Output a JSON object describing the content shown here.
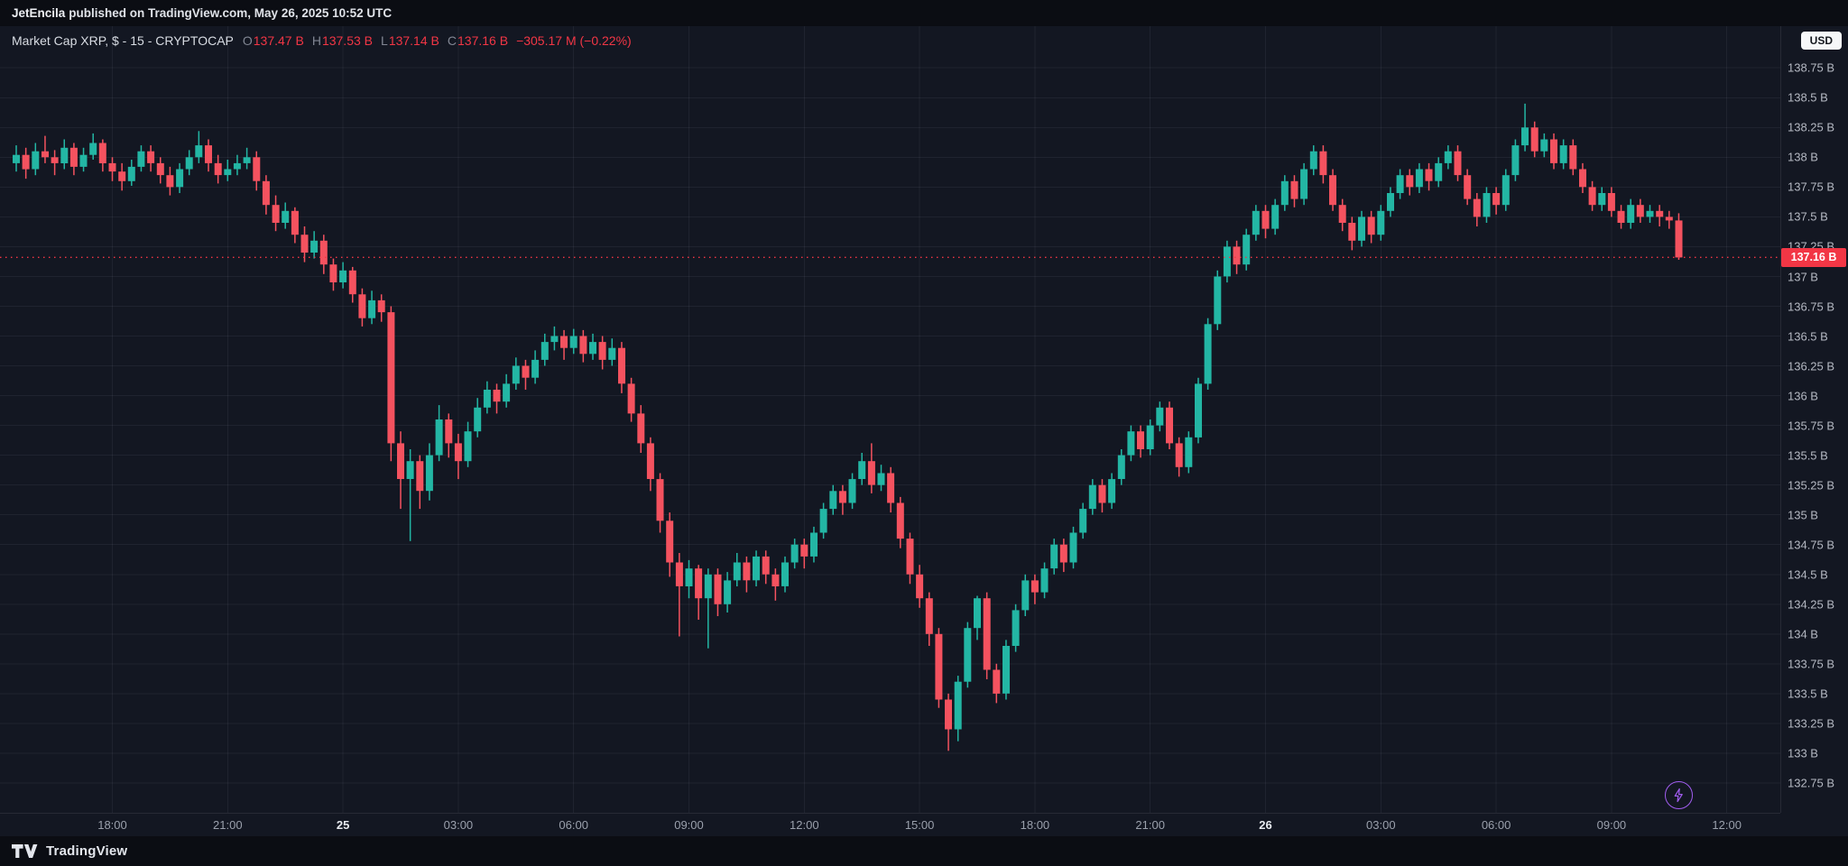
{
  "header": {
    "user": "JetEncila",
    "rest": "published on TradingView.com, May 26, 2025 10:52 UTC"
  },
  "legend": {
    "title": "Market Cap XRP, $ - 15 - CRYPTOCAP",
    "o_label": "O",
    "o_value": "137.47 B",
    "h_label": "H",
    "h_value": "137.53 B",
    "l_label": "L",
    "l_value": "137.14 B",
    "c_label": "C",
    "c_value": "137.16 B",
    "change": "−305.17 M (−0.22%)"
  },
  "currency_button": "USD",
  "price_tag": "137.16 B",
  "footer": {
    "brand": "TradingView"
  },
  "colors": {
    "up": "#23b6a4",
    "down": "#f4525f",
    "accent_red": "#f23645",
    "bg": "#131722",
    "frame": "#0b0d13",
    "grid": "rgba(240,243,250,0.06)",
    "axis_text": "#b4b8c2",
    "purple": "#a15df0"
  },
  "chart_data": {
    "type": "candlestick",
    "title": "Market Cap XRP",
    "exchange": "CRYPTOCAP",
    "interval": "15",
    "currency": "USD",
    "unit_suffix": " B",
    "grid": true,
    "last_price": 137.16,
    "price_line": 137.16,
    "ylim": [
      132.5,
      139.1
    ],
    "y_ticks": [
      {
        "value": 138.75,
        "label": "138.75 B"
      },
      {
        "value": 138.5,
        "label": "138.5 B"
      },
      {
        "value": 138.25,
        "label": "138.25 B"
      },
      {
        "value": 138,
        "label": "138 B"
      },
      {
        "value": 137.75,
        "label": "137.75 B"
      },
      {
        "value": 137.5,
        "label": "137.5 B"
      },
      {
        "value": 137.25,
        "label": "137.25 B"
      },
      {
        "value": 137,
        "label": "137 B"
      },
      {
        "value": 136.75,
        "label": "136.75 B"
      },
      {
        "value": 136.5,
        "label": "136.5 B"
      },
      {
        "value": 136.25,
        "label": "136.25 B"
      },
      {
        "value": 136,
        "label": "136 B"
      },
      {
        "value": 135.75,
        "label": "135.75 B"
      },
      {
        "value": 135.5,
        "label": "135.5 B"
      },
      {
        "value": 135.25,
        "label": "135.25 B"
      },
      {
        "value": 135,
        "label": "135 B"
      },
      {
        "value": 134.75,
        "label": "134.75 B"
      },
      {
        "value": 134.5,
        "label": "134.5 B"
      },
      {
        "value": 134.25,
        "label": "134.25 B"
      },
      {
        "value": 134,
        "label": "134 B"
      },
      {
        "value": 133.75,
        "label": "133.75 B"
      },
      {
        "value": 133.5,
        "label": "133.5 B"
      },
      {
        "value": 133.25,
        "label": "133.25 B"
      },
      {
        "value": 133,
        "label": "133 B"
      },
      {
        "value": 132.75,
        "label": "132.75 B"
      }
    ],
    "x_ticks": [
      {
        "index": 10,
        "label": "18:00"
      },
      {
        "index": 22,
        "label": "21:00"
      },
      {
        "index": 34,
        "label": "25",
        "major": true
      },
      {
        "index": 46,
        "label": "03:00"
      },
      {
        "index": 58,
        "label": "06:00"
      },
      {
        "index": 70,
        "label": "09:00"
      },
      {
        "index": 82,
        "label": "12:00"
      },
      {
        "index": 94,
        "label": "15:00"
      },
      {
        "index": 106,
        "label": "18:00"
      },
      {
        "index": 118,
        "label": "21:00"
      },
      {
        "index": 130,
        "label": "26",
        "major": true
      },
      {
        "index": 142,
        "label": "03:00"
      },
      {
        "index": 154,
        "label": "06:00"
      },
      {
        "index": 166,
        "label": "09:00"
      },
      {
        "index": 178,
        "label": "12:00"
      }
    ],
    "candles": [
      [
        137.95,
        138.1,
        137.88,
        138.02
      ],
      [
        138.02,
        138.08,
        137.82,
        137.9
      ],
      [
        137.9,
        138.12,
        137.85,
        138.05
      ],
      [
        138.05,
        138.18,
        137.95,
        138.0
      ],
      [
        138.0,
        138.06,
        137.85,
        137.95
      ],
      [
        137.95,
        138.15,
        137.9,
        138.08
      ],
      [
        138.08,
        138.12,
        137.85,
        137.92
      ],
      [
        137.92,
        138.08,
        137.88,
        138.02
      ],
      [
        138.02,
        138.2,
        137.98,
        138.12
      ],
      [
        138.12,
        138.15,
        137.88,
        137.95
      ],
      [
        137.95,
        138.0,
        137.8,
        137.88
      ],
      [
        137.88,
        137.95,
        137.72,
        137.8
      ],
      [
        137.8,
        137.98,
        137.76,
        137.92
      ],
      [
        137.92,
        138.1,
        137.88,
        138.05
      ],
      [
        138.05,
        138.1,
        137.88,
        137.95
      ],
      [
        137.95,
        138.0,
        137.78,
        137.85
      ],
      [
        137.85,
        137.92,
        137.68,
        137.75
      ],
      [
        137.75,
        137.95,
        137.7,
        137.9
      ],
      [
        137.9,
        138.06,
        137.85,
        138.0
      ],
      [
        138.0,
        138.22,
        137.95,
        138.1
      ],
      [
        138.1,
        138.15,
        137.88,
        137.95
      ],
      [
        137.95,
        138.02,
        137.78,
        137.85
      ],
      [
        137.85,
        137.98,
        137.8,
        137.9
      ],
      [
        137.9,
        138.02,
        137.85,
        137.95
      ],
      [
        137.95,
        138.08,
        137.9,
        138.0
      ],
      [
        138.0,
        138.05,
        137.72,
        137.8
      ],
      [
        137.8,
        137.85,
        137.52,
        137.6
      ],
      [
        137.6,
        137.68,
        137.38,
        137.45
      ],
      [
        137.45,
        137.62,
        137.4,
        137.55
      ],
      [
        137.55,
        137.58,
        137.28,
        137.35
      ],
      [
        137.35,
        137.42,
        137.12,
        137.2
      ],
      [
        137.2,
        137.38,
        137.15,
        137.3
      ],
      [
        137.3,
        137.35,
        137.02,
        137.1
      ],
      [
        137.1,
        137.15,
        136.88,
        136.95
      ],
      [
        136.95,
        137.12,
        136.9,
        137.05
      ],
      [
        137.05,
        137.08,
        136.78,
        136.85
      ],
      [
        136.85,
        136.9,
        136.58,
        136.65
      ],
      [
        136.65,
        136.88,
        136.6,
        136.8
      ],
      [
        136.8,
        136.85,
        136.62,
        136.7
      ],
      [
        136.7,
        136.75,
        135.45,
        135.6
      ],
      [
        135.6,
        135.7,
        135.05,
        135.3
      ],
      [
        135.3,
        135.55,
        134.78,
        135.45
      ],
      [
        135.45,
        135.5,
        135.05,
        135.2
      ],
      [
        135.2,
        135.6,
        135.12,
        135.5
      ],
      [
        135.5,
        135.92,
        135.45,
        135.8
      ],
      [
        135.8,
        135.85,
        135.48,
        135.6
      ],
      [
        135.6,
        135.68,
        135.3,
        135.45
      ],
      [
        135.45,
        135.78,
        135.4,
        135.7
      ],
      [
        135.7,
        135.98,
        135.65,
        135.9
      ],
      [
        135.9,
        136.12,
        135.85,
        136.05
      ],
      [
        136.05,
        136.1,
        135.85,
        135.95
      ],
      [
        135.95,
        136.18,
        135.9,
        136.1
      ],
      [
        136.1,
        136.32,
        136.05,
        136.25
      ],
      [
        136.25,
        136.3,
        136.05,
        136.15
      ],
      [
        136.15,
        136.38,
        136.1,
        136.3
      ],
      [
        136.3,
        136.52,
        136.25,
        136.45
      ],
      [
        136.45,
        136.58,
        136.38,
        136.5
      ],
      [
        136.5,
        136.55,
        136.3,
        136.4
      ],
      [
        136.4,
        136.56,
        136.35,
        136.5
      ],
      [
        136.5,
        136.55,
        136.28,
        136.35
      ],
      [
        136.35,
        136.52,
        136.3,
        136.45
      ],
      [
        136.45,
        136.5,
        136.22,
        136.3
      ],
      [
        136.3,
        136.48,
        136.25,
        136.4
      ],
      [
        136.4,
        136.45,
        136.02,
        136.1
      ],
      [
        136.1,
        136.15,
        135.78,
        135.85
      ],
      [
        135.85,
        135.92,
        135.52,
        135.6
      ],
      [
        135.6,
        135.65,
        135.2,
        135.3
      ],
      [
        135.3,
        135.35,
        134.85,
        134.95
      ],
      [
        134.95,
        135.02,
        134.48,
        134.6
      ],
      [
        134.6,
        134.68,
        133.98,
        134.4
      ],
      [
        134.4,
        134.62,
        134.3,
        134.55
      ],
      [
        134.55,
        134.58,
        134.12,
        134.3
      ],
      [
        134.3,
        134.55,
        133.88,
        134.5
      ],
      [
        134.5,
        134.55,
        134.15,
        134.25
      ],
      [
        134.25,
        134.52,
        134.18,
        134.45
      ],
      [
        134.45,
        134.68,
        134.4,
        134.6
      ],
      [
        134.6,
        134.65,
        134.35,
        134.45
      ],
      [
        134.45,
        134.7,
        134.4,
        134.65
      ],
      [
        134.65,
        134.7,
        134.42,
        134.5
      ],
      [
        134.5,
        134.55,
        134.28,
        134.4
      ],
      [
        134.4,
        134.65,
        134.35,
        134.6
      ],
      [
        134.6,
        134.8,
        134.55,
        134.75
      ],
      [
        134.75,
        134.8,
        134.55,
        134.65
      ],
      [
        134.65,
        134.9,
        134.6,
        134.85
      ],
      [
        134.85,
        135.1,
        134.8,
        135.05
      ],
      [
        135.05,
        135.25,
        135.0,
        135.2
      ],
      [
        135.2,
        135.25,
        135.0,
        135.1
      ],
      [
        135.1,
        135.35,
        135.05,
        135.3
      ],
      [
        135.3,
        135.52,
        135.25,
        135.45
      ],
      [
        135.45,
        135.6,
        135.18,
        135.25
      ],
      [
        135.25,
        135.42,
        135.2,
        135.35
      ],
      [
        135.35,
        135.4,
        135.02,
        135.1
      ],
      [
        135.1,
        135.15,
        134.72,
        134.8
      ],
      [
        134.8,
        134.85,
        134.42,
        134.5
      ],
      [
        134.5,
        134.58,
        134.22,
        134.3
      ],
      [
        134.3,
        134.35,
        133.9,
        134.0
      ],
      [
        134.0,
        134.05,
        133.38,
        133.45
      ],
      [
        133.45,
        133.5,
        133.02,
        133.2
      ],
      [
        133.2,
        133.65,
        133.1,
        133.6
      ],
      [
        133.6,
        134.1,
        133.55,
        134.05
      ],
      [
        134.05,
        134.32,
        133.95,
        134.3
      ],
      [
        134.3,
        134.35,
        133.62,
        133.7
      ],
      [
        133.7,
        133.75,
        133.42,
        133.5
      ],
      [
        133.5,
        133.95,
        133.45,
        133.9
      ],
      [
        133.9,
        134.25,
        133.85,
        134.2
      ],
      [
        134.2,
        134.5,
        134.15,
        134.45
      ],
      [
        134.45,
        134.5,
        134.25,
        134.35
      ],
      [
        134.35,
        134.6,
        134.3,
        134.55
      ],
      [
        134.55,
        134.8,
        134.5,
        134.75
      ],
      [
        134.75,
        134.8,
        134.52,
        134.6
      ],
      [
        134.6,
        134.9,
        134.55,
        134.85
      ],
      [
        134.85,
        135.1,
        134.8,
        135.05
      ],
      [
        135.05,
        135.3,
        135.0,
        135.25
      ],
      [
        135.25,
        135.3,
        135.02,
        135.1
      ],
      [
        135.1,
        135.35,
        135.05,
        135.3
      ],
      [
        135.3,
        135.55,
        135.25,
        135.5
      ],
      [
        135.5,
        135.75,
        135.45,
        135.7
      ],
      [
        135.7,
        135.75,
        135.48,
        135.55
      ],
      [
        135.55,
        135.8,
        135.5,
        135.75
      ],
      [
        135.75,
        135.95,
        135.7,
        135.9
      ],
      [
        135.9,
        135.95,
        135.55,
        135.6
      ],
      [
        135.6,
        135.65,
        135.32,
        135.4
      ],
      [
        135.4,
        135.7,
        135.35,
        135.65
      ],
      [
        135.65,
        136.15,
        135.6,
        136.1
      ],
      [
        136.1,
        136.65,
        136.05,
        136.6
      ],
      [
        136.6,
        137.05,
        136.55,
        137.0
      ],
      [
        137.0,
        137.3,
        136.95,
        137.25
      ],
      [
        137.25,
        137.3,
        137.02,
        137.1
      ],
      [
        137.1,
        137.4,
        137.05,
        137.35
      ],
      [
        137.35,
        137.6,
        137.3,
        137.55
      ],
      [
        137.55,
        137.6,
        137.32,
        137.4
      ],
      [
        137.4,
        137.65,
        137.35,
        137.6
      ],
      [
        137.6,
        137.85,
        137.55,
        137.8
      ],
      [
        137.8,
        137.85,
        137.58,
        137.65
      ],
      [
        137.65,
        137.95,
        137.6,
        137.9
      ],
      [
        137.9,
        138.1,
        137.85,
        138.05
      ],
      [
        138.05,
        138.1,
        137.78,
        137.85
      ],
      [
        137.85,
        137.9,
        137.55,
        137.6
      ],
      [
        137.6,
        137.65,
        137.38,
        137.45
      ],
      [
        137.45,
        137.5,
        137.22,
        137.3
      ],
      [
        137.3,
        137.55,
        137.25,
        137.5
      ],
      [
        137.5,
        137.55,
        137.28,
        137.35
      ],
      [
        137.35,
        137.6,
        137.3,
        137.55
      ],
      [
        137.55,
        137.75,
        137.5,
        137.7
      ],
      [
        137.7,
        137.9,
        137.65,
        137.85
      ],
      [
        137.85,
        137.9,
        137.68,
        137.75
      ],
      [
        137.75,
        137.95,
        137.7,
        137.9
      ],
      [
        137.9,
        137.95,
        137.72,
        137.8
      ],
      [
        137.8,
        138.0,
        137.75,
        137.95
      ],
      [
        137.95,
        138.1,
        137.9,
        138.05
      ],
      [
        138.05,
        138.1,
        137.8,
        137.85
      ],
      [
        137.85,
        137.9,
        137.6,
        137.65
      ],
      [
        137.65,
        137.7,
        137.42,
        137.5
      ],
      [
        137.5,
        137.75,
        137.45,
        137.7
      ],
      [
        137.7,
        137.75,
        137.52,
        137.6
      ],
      [
        137.6,
        137.9,
        137.55,
        137.85
      ],
      [
        137.85,
        138.15,
        137.8,
        138.1
      ],
      [
        138.1,
        138.45,
        138.05,
        138.25
      ],
      [
        138.25,
        138.3,
        138.0,
        138.05
      ],
      [
        138.05,
        138.2,
        138.0,
        138.15
      ],
      [
        138.15,
        138.2,
        137.9,
        137.95
      ],
      [
        137.95,
        138.15,
        137.9,
        138.1
      ],
      [
        138.1,
        138.15,
        137.85,
        137.9
      ],
      [
        137.9,
        137.95,
        137.7,
        137.75
      ],
      [
        137.75,
        137.8,
        137.55,
        137.6
      ],
      [
        137.6,
        137.75,
        137.55,
        137.7
      ],
      [
        137.7,
        137.75,
        137.5,
        137.55
      ],
      [
        137.55,
        137.6,
        137.4,
        137.45
      ],
      [
        137.45,
        137.65,
        137.4,
        137.6
      ],
      [
        137.6,
        137.65,
        137.45,
        137.5
      ],
      [
        137.5,
        137.6,
        137.45,
        137.55
      ],
      [
        137.55,
        137.6,
        137.42,
        137.5
      ],
      [
        137.5,
        137.55,
        137.4,
        137.47
      ],
      [
        137.47,
        137.53,
        137.14,
        137.16
      ]
    ]
  }
}
